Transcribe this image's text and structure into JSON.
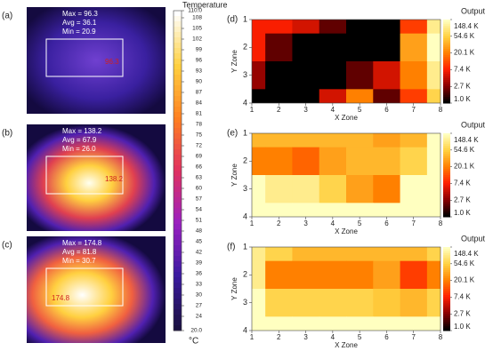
{
  "thermal_panels": [
    {
      "label": "(a)",
      "stats": [
        "Max = 96.3",
        "Avg = 36.1",
        "Min = 20.9"
      ],
      "marker": "96.3"
    },
    {
      "label": "(b)",
      "stats": [
        "Max = 138.2",
        "Avg = 67.9",
        "Min = 26.0"
      ],
      "marker": "138.2"
    },
    {
      "label": "(c)",
      "stats": [
        "Max = 174.8",
        "Avg = 81.8",
        "Min = 30.7"
      ],
      "marker": "174.8"
    }
  ],
  "thermal_colorbar": {
    "title": "Temperature",
    "unit": "°C",
    "lim": [
      20,
      110
    ],
    "colors": [
      "#1a1040",
      "#3a1aa0",
      "#9a20c0",
      "#e03060",
      "#ff8020",
      "#ffd040",
      "#ffffff"
    ],
    "ticks": [
      {
        "value": 110,
        "label": "110.0"
      },
      108,
      105,
      102,
      99,
      96,
      93,
      90,
      87,
      84,
      81,
      78,
      75,
      72,
      69,
      66,
      63,
      60,
      57,
      54,
      51,
      48,
      45,
      42,
      39,
      36,
      33,
      30,
      27,
      24,
      {
        "value": 20,
        "label": "20.0"
      }
    ]
  },
  "chart_data": [
    {
      "type": "contour",
      "label": "(d)",
      "xlabel": "X Zone",
      "ylabel": "Y Zone",
      "colorbar_title": "Output",
      "x": [
        1,
        2,
        3,
        4,
        5,
        6,
        7,
        8
      ],
      "y": [
        1,
        2,
        3,
        4
      ],
      "values": [
        [
          7,
          7,
          5,
          2,
          1,
          1,
          10,
          100
        ],
        [
          7,
          2,
          1,
          1,
          1,
          1,
          30,
          148
        ],
        [
          3,
          1,
          1,
          1,
          2,
          5,
          20,
          100
        ],
        [
          1,
          1,
          1,
          5,
          20,
          2,
          10,
          60
        ]
      ],
      "xlim": [
        1,
        8
      ],
      "ylim": [
        4,
        1
      ],
      "xticks": [
        1,
        2,
        3,
        4,
        5,
        6,
        7,
        8
      ],
      "yticks": [
        1,
        2,
        3,
        4
      ],
      "clim": [
        1.0,
        148.4
      ],
      "log_scale": true,
      "colormap": [
        "#000000",
        "#8b0000",
        "#ff2000",
        "#ff8000",
        "#ffd040",
        "#ffffc0"
      ],
      "cticks": [
        {
          "value": 148.4,
          "label": "148.4 K"
        },
        {
          "value": 54.6,
          "label": "54.6 K"
        },
        {
          "value": 20.1,
          "label": "20.1 K"
        },
        {
          "value": 7.4,
          "label": "7.4 K"
        },
        {
          "value": 2.7,
          "label": "2.7 K"
        },
        {
          "value": 1.0,
          "label": "1.0 K"
        }
      ]
    },
    {
      "type": "contour",
      "label": "(e)",
      "xlabel": "X Zone",
      "ylabel": "Y Zone",
      "colorbar_title": "Output",
      "x": [
        1,
        2,
        3,
        4,
        5,
        6,
        7,
        8
      ],
      "y": [
        1,
        2,
        3,
        4
      ],
      "values": [
        [
          40,
          40,
          40,
          40,
          40,
          30,
          40,
          148
        ],
        [
          20,
          20,
          15,
          30,
          40,
          40,
          60,
          148
        ],
        [
          148,
          100,
          100,
          60,
          30,
          20,
          148,
          148
        ],
        [
          148,
          148,
          148,
          148,
          148,
          148,
          148,
          148
        ]
      ],
      "xlim": [
        1,
        8
      ],
      "ylim": [
        4,
        1
      ],
      "xticks": [
        1,
        2,
        3,
        4,
        5,
        6,
        7,
        8
      ],
      "yticks": [
        1,
        2,
        3,
        4
      ],
      "clim": [
        1.0,
        148.4
      ],
      "log_scale": true,
      "colormap": [
        "#000000",
        "#8b0000",
        "#ff2000",
        "#ff8000",
        "#ffd040",
        "#ffffc0"
      ],
      "cticks": [
        {
          "value": 148.4,
          "label": "148.4 K"
        },
        {
          "value": 54.6,
          "label": "54.6 K"
        },
        {
          "value": 20.1,
          "label": "20.1 K"
        },
        {
          "value": 7.4,
          "label": "7.4 K"
        },
        {
          "value": 2.7,
          "label": "2.7 K"
        },
        {
          "value": 1.0,
          "label": "1.0 K"
        }
      ]
    },
    {
      "type": "contour",
      "label": "(f)",
      "xlabel": "X Zone",
      "ylabel": "Y Zone",
      "colorbar_title": "Output",
      "x": [
        1,
        2,
        3,
        4,
        5,
        6,
        7,
        8
      ],
      "y": [
        1,
        2,
        3,
        4
      ],
      "values": [
        [
          100,
          60,
          40,
          40,
          40,
          40,
          40,
          60
        ],
        [
          100,
          20,
          20,
          20,
          20,
          30,
          10,
          20
        ],
        [
          148,
          60,
          60,
          60,
          60,
          50,
          40,
          60
        ],
        [
          148,
          148,
          148,
          148,
          148,
          148,
          148,
          148
        ]
      ],
      "xlim": [
        1,
        8
      ],
      "ylim": [
        4,
        1
      ],
      "xticks": [
        1,
        2,
        3,
        4,
        5,
        6,
        7,
        8
      ],
      "yticks": [
        1,
        2,
        3,
        4
      ],
      "clim": [
        1.0,
        148.4
      ],
      "log_scale": true,
      "colormap": [
        "#000000",
        "#8b0000",
        "#ff2000",
        "#ff8000",
        "#ffd040",
        "#ffffc0"
      ],
      "cticks": [
        {
          "value": 148.4,
          "label": "148.4 K"
        },
        {
          "value": 54.6,
          "label": "54.6 K"
        },
        {
          "value": 20.1,
          "label": "20.1 K"
        },
        {
          "value": 7.4,
          "label": "7.4 K"
        },
        {
          "value": 2.7,
          "label": "2.7 K"
        },
        {
          "value": 1.0,
          "label": "1.0 K"
        }
      ]
    }
  ]
}
